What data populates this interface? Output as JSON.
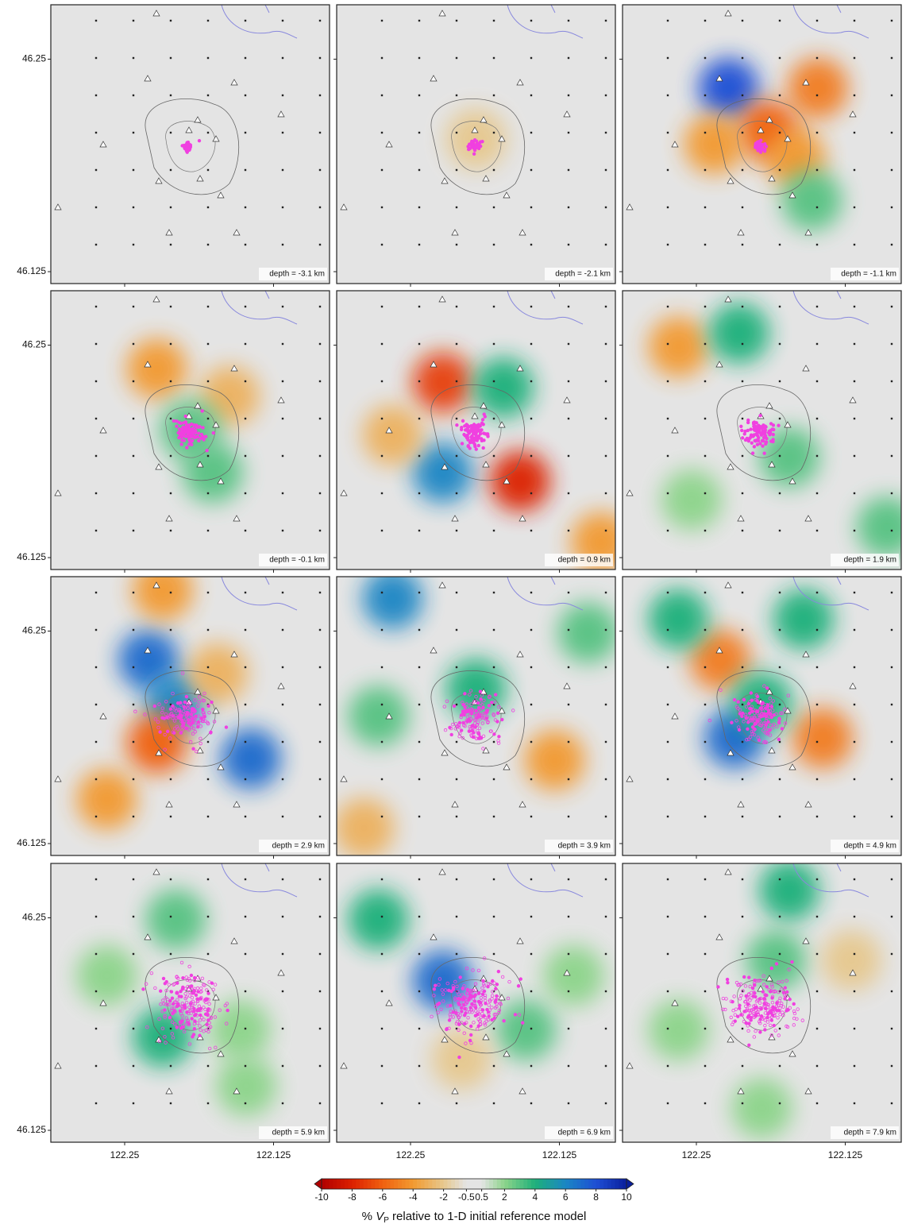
{
  "chart_data": {
    "type": "map",
    "xlim": [
      122.312,
      122.078
    ],
    "ylim": [
      46.118,
      46.282
    ],
    "xticks": [
      122.25,
      122.125
    ],
    "yticks": [
      46.25,
      46.125
    ],
    "panels": [
      {
        "label": "depth = -3.1 km",
        "anomalies": []
      },
      {
        "label": "depth = -2.1 km",
        "anomalies": [
          [
            122.195,
            46.203,
            -2
          ]
        ]
      },
      {
        "label": "depth = -1.1 km",
        "anomalies": [
          [
            122.223,
            46.233,
            8
          ],
          [
            122.148,
            46.233,
            -5
          ],
          [
            122.19,
            46.208,
            -6
          ],
          [
            122.235,
            46.2,
            -4
          ],
          [
            122.167,
            46.192,
            -4
          ],
          [
            122.153,
            46.167,
            3
          ]
        ]
      },
      {
        "label": "depth = -0.1 km",
        "anomalies": [
          [
            122.223,
            46.236,
            -4
          ],
          [
            122.162,
            46.22,
            -3
          ],
          [
            122.195,
            46.2,
            3
          ],
          [
            122.176,
            46.175,
            3
          ]
        ]
      },
      {
        "label": "depth = 0.9 km",
        "anomalies": [
          [
            122.223,
            46.228,
            -7
          ],
          [
            122.172,
            46.225,
            4
          ],
          [
            122.223,
            46.175,
            6
          ],
          [
            122.158,
            46.17,
            -8
          ],
          [
            122.265,
            46.197,
            -3
          ],
          [
            122.09,
            46.134,
            -4
          ]
        ]
      },
      {
        "label": "depth = 1.9 km",
        "anomalies": [
          [
            122.265,
            46.249,
            -4
          ],
          [
            122.214,
            46.257,
            4
          ],
          [
            122.172,
            46.184,
            3
          ],
          [
            122.254,
            46.159,
            2
          ],
          [
            122.09,
            46.143,
            3
          ]
        ]
      },
      {
        "label": "depth = 2.9 km",
        "anomalies": [
          [
            122.23,
            46.233,
            7
          ],
          [
            122.207,
            46.208,
            6
          ],
          [
            122.223,
            46.184,
            -6
          ],
          [
            122.144,
            46.175,
            7
          ],
          [
            122.265,
            46.151,
            -4
          ],
          [
            122.172,
            46.225,
            -3
          ],
          [
            122.218,
            46.274,
            -4
          ]
        ]
      },
      {
        "label": "depth = 3.9 km",
        "anomalies": [
          [
            122.265,
            46.269,
            6
          ],
          [
            122.195,
            46.216,
            4
          ],
          [
            122.277,
            46.2,
            3
          ],
          [
            122.129,
            46.174,
            -4
          ],
          [
            122.289,
            46.134,
            -3
          ],
          [
            122.101,
            46.249,
            3
          ]
        ]
      },
      {
        "label": "depth = 4.9 km",
        "anomalies": [
          [
            122.23,
            46.233,
            -5
          ],
          [
            122.218,
            46.187,
            7
          ],
          [
            122.144,
            46.187,
            -5
          ],
          [
            122.195,
            46.208,
            4
          ],
          [
            122.265,
            46.257,
            4
          ],
          [
            122.16,
            46.257,
            4
          ]
        ]
      },
      {
        "label": "depth = 5.9 km",
        "anomalies": [
          [
            122.207,
            46.249,
            3
          ],
          [
            122.218,
            46.18,
            4
          ],
          [
            122.153,
            46.184,
            2
          ],
          [
            122.265,
            46.216,
            2
          ],
          [
            122.148,
            46.151,
            2
          ]
        ]
      },
      {
        "label": "depth = 6.9 km",
        "anomalies": [
          [
            122.223,
            46.213,
            7
          ],
          [
            122.277,
            46.249,
            4
          ],
          [
            122.153,
            46.184,
            3
          ],
          [
            122.207,
            46.167,
            -2
          ],
          [
            122.113,
            46.216,
            2
          ]
        ]
      },
      {
        "label": "depth = 7.9 km",
        "anomalies": [
          [
            122.172,
            46.266,
            4
          ],
          [
            122.183,
            46.225,
            3
          ],
          [
            122.265,
            46.184,
            2
          ],
          [
            122.195,
            46.138,
            2
          ],
          [
            122.12,
            46.225,
            -2
          ]
        ]
      }
    ],
    "colorbar": {
      "ticks": [
        -10,
        -8,
        -6,
        -4,
        -2,
        -0.5,
        0.5,
        2,
        4,
        6,
        8,
        10
      ],
      "colors": [
        "#b00000",
        "#dc2000",
        "#f06010",
        "#f29a30",
        "#e6c88e",
        "#e4e4e4",
        "#e4e4e4",
        "#8cd48a",
        "#1fb07a",
        "#1a86c4",
        "#1e4fd4",
        "#0a1f9c"
      ],
      "label_prefix": "% ",
      "label_var": "V",
      "label_sub": "P",
      "label_rest": " relative to 1-D initial reference model"
    }
  }
}
